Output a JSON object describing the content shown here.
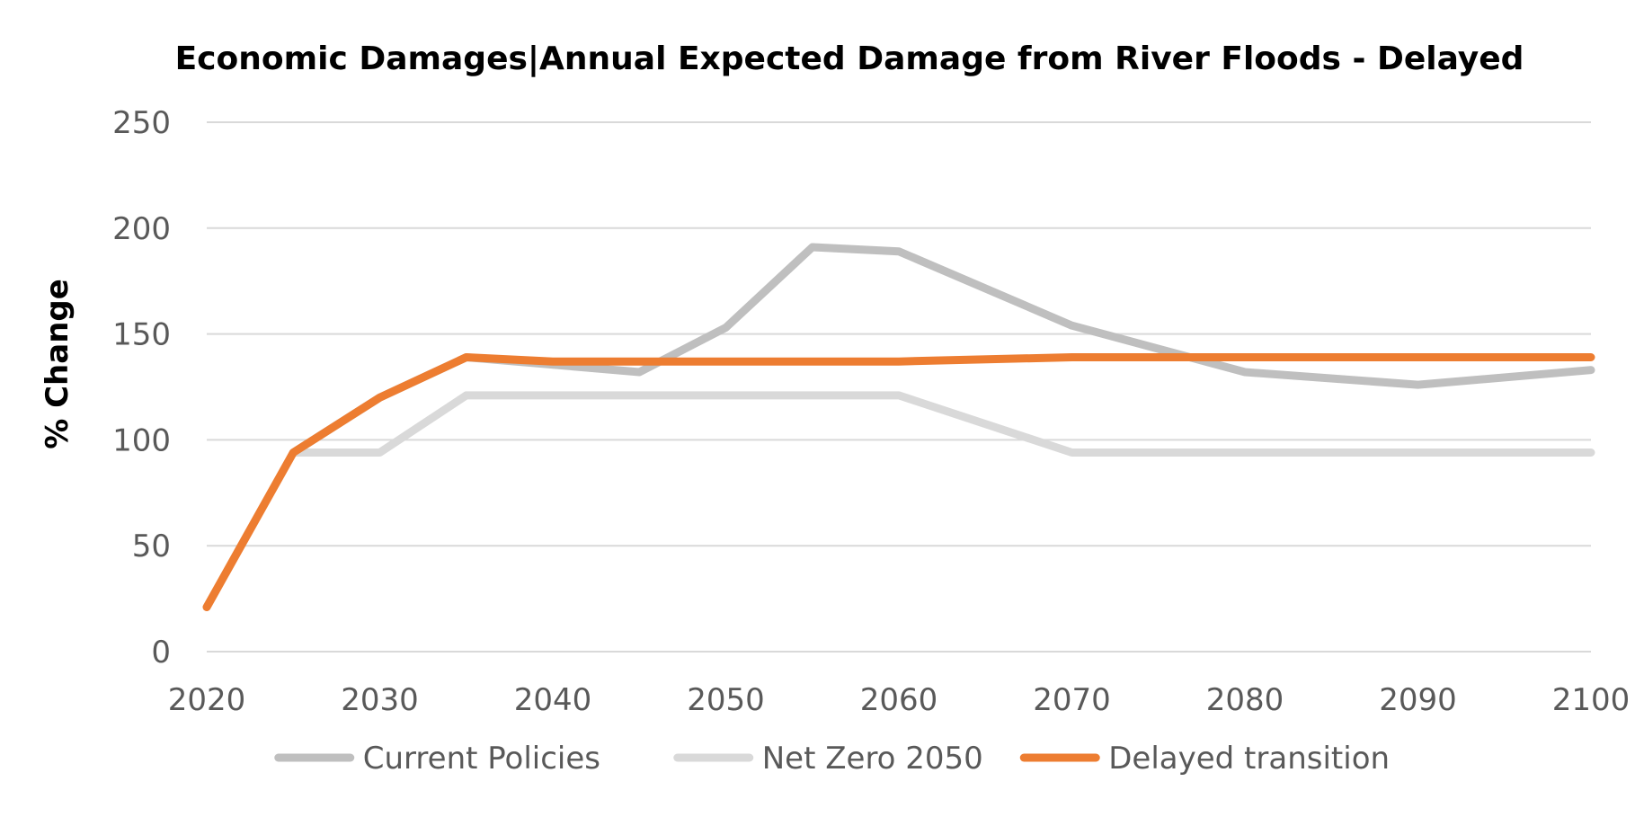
{
  "chart_data": {
    "type": "line",
    "title": "Economic Damages|Annual Expected Damage from River Floods - Delayed",
    "xlabel": "",
    "ylabel": "% Change",
    "xlim": [
      2020,
      2100
    ],
    "ylim": [
      0,
      250
    ],
    "x_ticks": [
      2020,
      2030,
      2040,
      2050,
      2060,
      2070,
      2080,
      2090,
      2100
    ],
    "y_ticks": [
      0,
      50,
      100,
      150,
      200,
      250
    ],
    "grid": "horizontal",
    "legend_position": "bottom",
    "series": [
      {
        "name": "Current Policies",
        "color": "#bfbfbf",
        "points": [
          [
            2025,
            94
          ],
          [
            2030,
            120
          ],
          [
            2035,
            139
          ],
          [
            2045,
            132
          ],
          [
            2050,
            153
          ],
          [
            2055,
            191
          ],
          [
            2060,
            189
          ],
          [
            2070,
            154
          ],
          [
            2080,
            132
          ],
          [
            2090,
            126
          ],
          [
            2100,
            133
          ]
        ]
      },
      {
        "name": "Net Zero 2050",
        "color": "#d9d9d9",
        "points": [
          [
            2025,
            94
          ],
          [
            2030,
            94
          ],
          [
            2035,
            121
          ],
          [
            2060,
            121
          ],
          [
            2070,
            94
          ],
          [
            2100,
            94
          ]
        ]
      },
      {
        "name": "Delayed transition",
        "color": "#ed7d31",
        "points": [
          [
            2020,
            21
          ],
          [
            2025,
            94
          ],
          [
            2030,
            120
          ],
          [
            2035,
            139
          ],
          [
            2040,
            137
          ],
          [
            2060,
            137
          ],
          [
            2070,
            139
          ],
          [
            2100,
            139
          ]
        ]
      }
    ]
  }
}
